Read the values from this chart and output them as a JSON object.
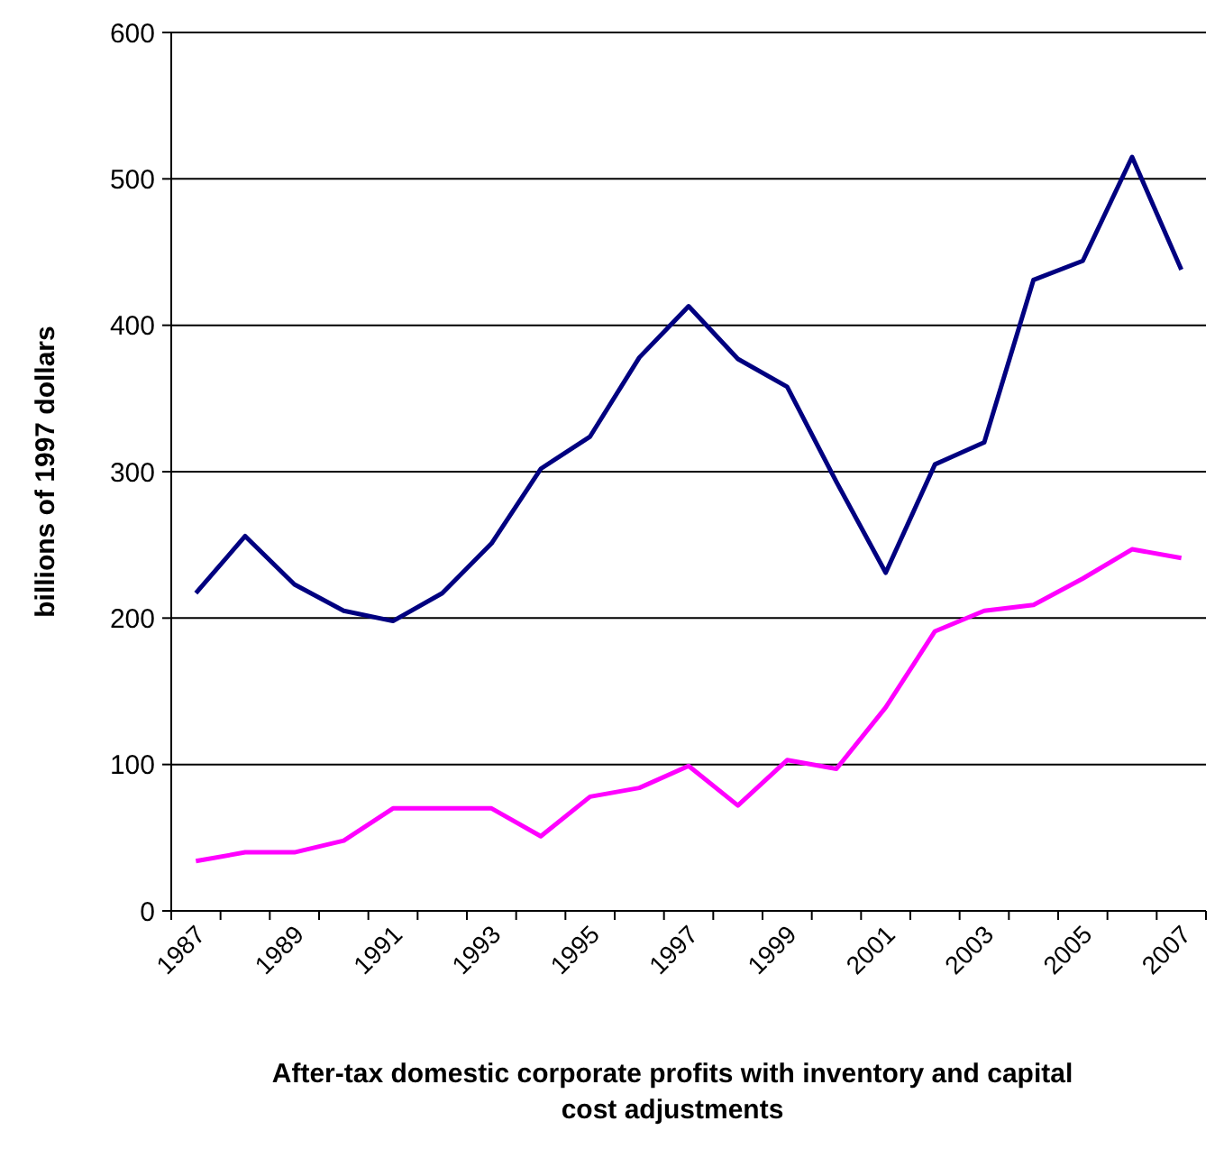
{
  "chart_data": {
    "type": "line",
    "xlabel": "After-tax domestic corporate profits with inventory and capital cost adjustments",
    "ylabel": "billions of 1997 dollars",
    "categories": [
      "1987",
      null,
      "1989",
      null,
      "1991",
      null,
      "1993",
      null,
      "1995",
      null,
      "1997",
      null,
      "1999",
      null,
      "2001",
      null,
      "2003",
      null,
      "2005",
      null,
      "2007"
    ],
    "series": [
      {
        "color": "#000080",
        "values": [
          217,
          256,
          223,
          205,
          198,
          217,
          251,
          302,
          324,
          378,
          413,
          377,
          358,
          293,
          231,
          305,
          320,
          431,
          444,
          515,
          438
        ]
      },
      {
        "color": "#ff00ff",
        "values": [
          34,
          40,
          40,
          48,
          70,
          70,
          70,
          51,
          78,
          84,
          99,
          72,
          103,
          97,
          139,
          191,
          205,
          209,
          227,
          247,
          241
        ]
      }
    ],
    "ylim": [
      0,
      600
    ],
    "yticks": [
      0,
      100,
      200,
      300,
      400,
      500,
      600
    ],
    "grid": "y",
    "marker": "none",
    "line_style": "solid"
  }
}
